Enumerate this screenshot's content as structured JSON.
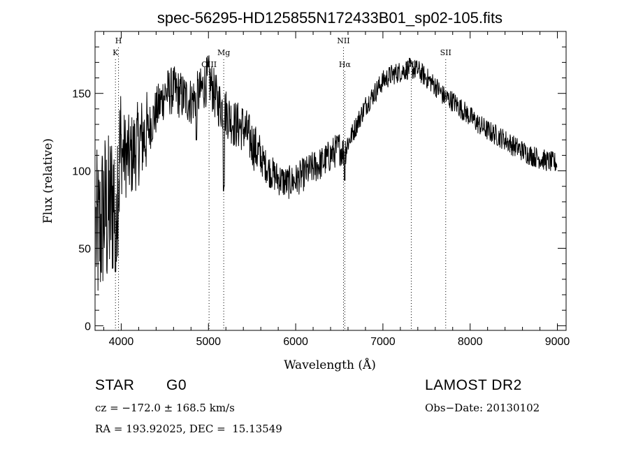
{
  "chart_data": {
    "type": "line",
    "title": "spec-56295-HD125855N172433B01_sp02-105.fits",
    "xlabel": "Wavelength (Å)",
    "ylabel": "Flux (relative)",
    "xlim": [
      3700,
      9100
    ],
    "ylim": [
      -3,
      190
    ],
    "x_ticks": [
      4000,
      5000,
      6000,
      7000,
      8000,
      9000
    ],
    "y_ticks": [
      0,
      50,
      100,
      150
    ],
    "grid": false,
    "legend": "none",
    "line_color": "#000000",
    "spectrum_trend": {
      "x": [
        3700,
        3750,
        3800,
        3850,
        3900,
        3950,
        4000,
        4100,
        4200,
        4300,
        4400,
        4500,
        4600,
        4700,
        4800,
        4900,
        4950,
        5000,
        5100,
        5200,
        5300,
        5400,
        5500,
        5600,
        5700,
        5800,
        5900,
        6000,
        6100,
        6200,
        6300,
        6400,
        6500,
        6550,
        6600,
        6700,
        6800,
        6900,
        7000,
        7100,
        7200,
        7300,
        7400,
        7500,
        7600,
        7700,
        7800,
        7900,
        8000,
        8100,
        8200,
        8300,
        8400,
        8500,
        8600,
        8700,
        8800,
        8900,
        9000
      ],
      "y": [
        60,
        58,
        75,
        70,
        80,
        95,
        112,
        108,
        118,
        125,
        138,
        150,
        152,
        148,
        145,
        150,
        155,
        160,
        145,
        138,
        130,
        128,
        118,
        108,
        100,
        95,
        92,
        94,
        98,
        102,
        105,
        110,
        115,
        112,
        118,
        130,
        142,
        150,
        158,
        162,
        164,
        166,
        165,
        160,
        155,
        148,
        145,
        140,
        135,
        130,
        126,
        123,
        120,
        116,
        113,
        110,
        108,
        106,
        105
      ]
    },
    "spectrum_dips": [
      {
        "x": 3934,
        "y": 35
      },
      {
        "x": 4861,
        "y": 120
      },
      {
        "x": 5172,
        "y": 87
      },
      {
        "x": 5180,
        "y": 90
      },
      {
        "x": 6563,
        "y": 94
      }
    ],
    "line_markers": [
      {
        "x": 3934,
        "label": "K"
      },
      {
        "x": 3969,
        "label": "H"
      },
      {
        "x": 5007,
        "label": "OIII"
      },
      {
        "x": 5175,
        "label": "Mg"
      },
      {
        "x": 6548,
        "label": "NII"
      },
      {
        "x": 6563,
        "label": "Hα"
      },
      {
        "x": 7325,
        "label": "OII"
      },
      {
        "x": 7720,
        "label": "SII"
      }
    ]
  },
  "info": {
    "object_type": "STAR",
    "subclass": "G0",
    "survey": "LAMOST DR2",
    "cz": "cz = −172.0 ± 168.5 km/s",
    "obs_date": "Obs−Date: 20130102",
    "coords": "RA = 193.92025, DEC =  15.13549"
  }
}
